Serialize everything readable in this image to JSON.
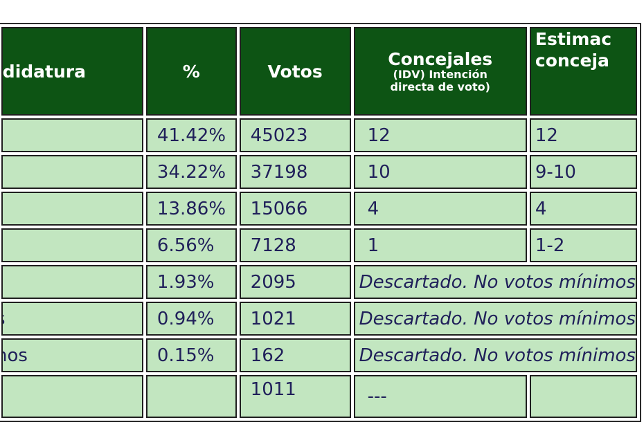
{
  "headers": {
    "candidatura": "ndidatura",
    "pct": "%",
    "votos": "Votos",
    "concejales_title": "Concejales",
    "concejales_sub1": "(IDV) Intención",
    "concejales_sub2": "directa de voto)",
    "estimacion_line1": "Estimac",
    "estimacion_line2": "conceja"
  },
  "rows": [
    {
      "candidatura": "",
      "pct": "41.42%",
      "votos": "45023",
      "concejales": "12",
      "estimacion": "12"
    },
    {
      "candidatura": "",
      "pct": "34.22%",
      "votos": "37198",
      "concejales": "10",
      "estimacion": "9-10"
    },
    {
      "candidatura": "",
      "pct": "13.86%",
      "votos": "15066",
      "concejales": "4",
      "estimacion": "4"
    },
    {
      "candidatura": "",
      "pct": "6.56%",
      "votos": "7128",
      "concejales": "1",
      "estimacion": "1-2"
    },
    {
      "candidatura": "",
      "pct": "1.93%",
      "votos": "2095",
      "note": "Descartado. No votos mínimos"
    },
    {
      "candidatura": "s",
      "pct": "0.94%",
      "votos": "1021",
      "note": "Descartado. No votos mínimos"
    },
    {
      "candidatura": "nos",
      "pct": "0.15%",
      "votos": "162",
      "note": "Descartado. No votos mínimos"
    },
    {
      "candidatura": "",
      "pct": "",
      "votos": "1011",
      "concejales": "---",
      "estimacion": ""
    }
  ],
  "colors": {
    "header_bg": "#0d5414",
    "cell_bg": "#c2e6c0",
    "cell_text": "#20205a"
  }
}
